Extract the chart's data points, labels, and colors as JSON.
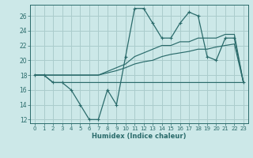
{
  "xlabel": "Humidex (Indice chaleur)",
  "bg_color": "#cce8e8",
  "grid_color": "#aacccc",
  "line_color": "#2a6b6b",
  "xlim": [
    -0.5,
    23.5
  ],
  "ylim": [
    11.5,
    27.5
  ],
  "xticks": [
    0,
    1,
    2,
    3,
    4,
    5,
    6,
    7,
    8,
    9,
    10,
    11,
    12,
    13,
    14,
    15,
    16,
    17,
    18,
    19,
    20,
    21,
    22,
    23
  ],
  "yticks": [
    12,
    14,
    16,
    18,
    20,
    22,
    24,
    26
  ],
  "main_y": [
    18,
    18,
    17,
    17,
    16,
    14,
    12,
    12,
    16,
    14,
    20.5,
    27,
    27,
    25,
    23,
    23,
    25,
    26.5,
    26,
    20.5,
    20,
    23,
    23,
    17
  ],
  "line_upper_y": [
    18,
    18,
    18,
    18,
    18,
    18,
    18,
    18,
    18.5,
    19,
    19.5,
    20.5,
    21,
    21.5,
    22,
    22,
    22.5,
    22.5,
    23,
    23,
    23,
    23.5,
    23.5,
    17
  ],
  "line_mid_y": [
    18,
    18,
    18,
    18,
    18,
    18,
    18,
    18,
    18.3,
    18.6,
    19,
    19.5,
    19.8,
    20,
    20.5,
    20.8,
    21,
    21.2,
    21.5,
    21.5,
    21.8,
    22,
    22.2,
    17
  ],
  "line_lower_y": [
    18,
    18,
    17,
    17,
    17,
    17,
    17,
    17,
    17,
    17,
    17,
    17,
    17,
    17,
    17,
    17,
    17,
    17,
    17,
    17,
    17,
    17,
    17,
    17
  ]
}
